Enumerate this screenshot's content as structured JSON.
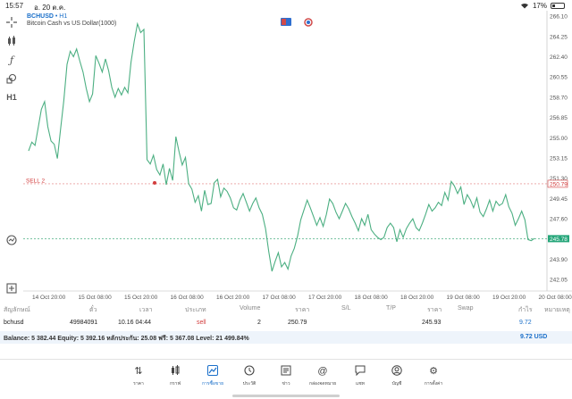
{
  "status_bar": {
    "time": "15:57",
    "date": "อ. 20 ต.ค.",
    "battery": "17%"
  },
  "chart": {
    "symbol": "BCHUSD",
    "timeframe": "H1",
    "description": "Bitcoin Cash vs US Dollar(1000)",
    "sell_label": "SELL 2",
    "sell_price_tag": "250.79",
    "current_price_tag": "245.78"
  },
  "chart_data": {
    "type": "line",
    "y_ticks": [
      "266.10",
      "264.25",
      "262.40",
      "260.55",
      "258.70",
      "256.85",
      "255.00",
      "253.15",
      "251.30",
      "249.45",
      "247.60",
      "245.75",
      "243.90",
      "242.05"
    ],
    "ylim": [
      241.0,
      266.6
    ],
    "x_ticks": [
      "14 Oct 20:00",
      "15 Oct 08:00",
      "15 Oct 20:00",
      "16 Oct 08:00",
      "16 Oct 20:00",
      "17 Oct 08:00",
      "17 Oct 20:00",
      "18 Oct 08:00",
      "18 Oct 20:00",
      "19 Oct 08:00",
      "19 Oct 20:00",
      "20 Oct 08:00"
    ],
    "sell_level": 250.79,
    "current_level": 245.78,
    "line_color": "#4caf82",
    "series": [
      {
        "values": [
          253.8,
          254.6,
          254.3,
          255.9,
          257.6,
          258.3,
          256.0,
          254.7,
          254.4,
          253.1,
          255.8,
          258.4,
          261.7,
          262.9,
          262.4,
          263.1,
          262.0,
          261.0,
          259.5,
          258.3,
          259.0,
          262.5,
          261.8,
          261.0,
          262.2,
          261.1,
          259.6,
          258.7,
          259.5,
          258.9,
          259.6,
          259.1,
          261.9,
          263.8,
          265.4,
          264.6,
          264.9,
          253.0,
          252.6,
          253.4,
          252.1,
          251.6,
          252.6,
          250.7,
          252.2,
          251.1,
          255.1,
          253.7,
          252.5,
          253.2,
          250.8,
          250.3,
          249.1,
          249.7,
          248.3,
          250.2,
          248.9,
          249.0,
          250.9,
          251.2,
          249.6,
          250.4,
          250.1,
          249.5,
          248.6,
          248.4,
          249.3,
          249.9,
          249.1,
          248.3,
          249.0,
          249.5,
          248.6,
          248.0,
          246.7,
          244.6,
          242.8,
          243.7,
          244.5,
          243.2,
          243.6,
          243.0,
          244.2,
          244.9,
          246.0,
          247.5,
          248.4,
          249.3,
          248.6,
          247.8,
          247.0,
          247.7,
          246.9,
          248.0,
          249.4,
          249.0,
          248.2,
          247.6,
          248.3,
          249.0,
          248.5,
          247.8,
          247.2,
          246.5,
          247.6,
          247.0,
          248.0,
          246.6,
          246.2,
          245.9,
          245.7,
          245.9,
          246.8,
          247.2,
          246.8,
          245.5,
          246.6,
          245.9,
          246.7,
          247.2,
          247.6,
          246.8,
          246.5,
          247.2,
          248.0,
          248.9,
          248.3,
          248.6,
          249.1,
          248.8,
          250.0,
          249.3,
          251.0,
          250.6,
          249.9,
          250.5,
          248.9,
          249.8,
          249.3,
          248.6,
          249.5,
          248.2,
          247.8,
          248.5,
          249.3,
          248.3,
          249.2,
          248.8,
          249.0,
          249.8,
          248.7,
          248.1,
          247.0,
          247.6,
          248.3,
          247.5,
          245.7,
          245.6,
          245.8
        ]
      }
    ]
  },
  "positions": {
    "headers": [
      "สัญลักษณ์",
      "ตั๋ว",
      "เวลา",
      "ประเภท",
      "Volume",
      "ราคา",
      "S/L",
      "T/P",
      "ราคา",
      "Swap",
      "กำไร",
      "หมายเหตุ"
    ],
    "row": {
      "symbol": "bchusd",
      "ticket": "49984091",
      "time": "10.16 04:44",
      "type": "sell",
      "volume": "2",
      "open_price": "250.79",
      "sl": "",
      "tp": "",
      "price": "245.93",
      "swap": "",
      "profit": "9.72",
      "comment": ""
    }
  },
  "balance": {
    "text": "Balance: 5 382.44 Equity: 5 392.16 หลักประกัน: 25.08 ฟรี: 5 367.08 Level: 21 499.84%",
    "profit": "9.72  USD"
  },
  "nav": [
    {
      "label": "ราคา",
      "icon": "arrows-updown-icon"
    },
    {
      "label": "กราฟ",
      "icon": "candles-icon"
    },
    {
      "label": "การซื้อขาย",
      "icon": "trade-chart-icon",
      "active": true
    },
    {
      "label": "ประวัติ",
      "icon": "history-icon"
    },
    {
      "label": "ข่าว",
      "icon": "news-icon"
    },
    {
      "label": "กล่องจดหมาย",
      "icon": "mail-at-icon"
    },
    {
      "label": "แชท",
      "icon": "chat-icon"
    },
    {
      "label": "บัญชี",
      "icon": "account-icon"
    },
    {
      "label": "การตั้งค่า",
      "icon": "gear-icon"
    }
  ]
}
